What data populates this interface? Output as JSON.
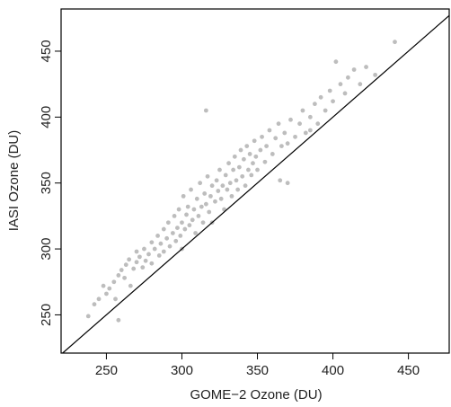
{
  "chart_data": {
    "type": "scatter",
    "x_label": "GOME−2 Ozone (DU)",
    "y_label": "IASI Ozone (DU)",
    "xlim": [
      220,
      477
    ],
    "ylim": [
      221,
      482
    ],
    "xticks": [
      250,
      300,
      350,
      400,
      450
    ],
    "yticks": [
      250,
      300,
      350,
      400,
      450
    ],
    "color": "#bdbdbd",
    "identity_line": true,
    "x": [
      238,
      242,
      245,
      248,
      250,
      252,
      255,
      256,
      258,
      258,
      260,
      262,
      263,
      265,
      266,
      268,
      270,
      270,
      272,
      274,
      275,
      276,
      278,
      280,
      280,
      282,
      284,
      285,
      286,
      288,
      288,
      290,
      291,
      292,
      294,
      295,
      296,
      297,
      298,
      299,
      300,
      300,
      301,
      302,
      303,
      304,
      305,
      306,
      307,
      308,
      309,
      310,
      311,
      312,
      313,
      314,
      315,
      316,
      317,
      318,
      319,
      320,
      320,
      322,
      323,
      324,
      325,
      326,
      327,
      328,
      329,
      330,
      331,
      332,
      333,
      334,
      335,
      336,
      337,
      338,
      339,
      340,
      341,
      342,
      343,
      344,
      345,
      346,
      347,
      348,
      349,
      350,
      352,
      353,
      355,
      356,
      358,
      360,
      362,
      364,
      366,
      368,
      370,
      372,
      375,
      378,
      380,
      382,
      385,
      388,
      390,
      392,
      395,
      398,
      400,
      402,
      405,
      408,
      410,
      414,
      418,
      422,
      428,
      441,
      316,
      365,
      370,
      385
    ],
    "values": [
      249,
      258,
      262,
      272,
      266,
      270,
      275,
      262,
      246,
      280,
      284,
      278,
      288,
      292,
      272,
      285,
      290,
      298,
      294,
      286,
      300,
      291,
      296,
      305,
      289,
      300,
      310,
      295,
      304,
      315,
      298,
      308,
      320,
      302,
      312,
      325,
      306,
      316,
      330,
      310,
      320,
      300,
      340,
      315,
      326,
      332,
      318,
      345,
      322,
      330,
      312,
      338,
      325,
      350,
      332,
      320,
      342,
      334,
      355,
      328,
      340,
      348,
      320,
      336,
      352,
      344,
      360,
      338,
      348,
      330,
      356,
      345,
      365,
      350,
      340,
      360,
      370,
      352,
      345,
      362,
      375,
      355,
      368,
      348,
      378,
      360,
      372,
      356,
      365,
      382,
      370,
      360,
      375,
      385,
      366,
      378,
      390,
      372,
      384,
      395,
      378,
      388,
      380,
      398,
      385,
      395,
      405,
      388,
      400,
      410,
      395,
      415,
      405,
      420,
      412,
      442,
      425,
      418,
      430,
      436,
      425,
      438,
      432,
      457,
      405,
      352,
      350,
      390
    ]
  }
}
